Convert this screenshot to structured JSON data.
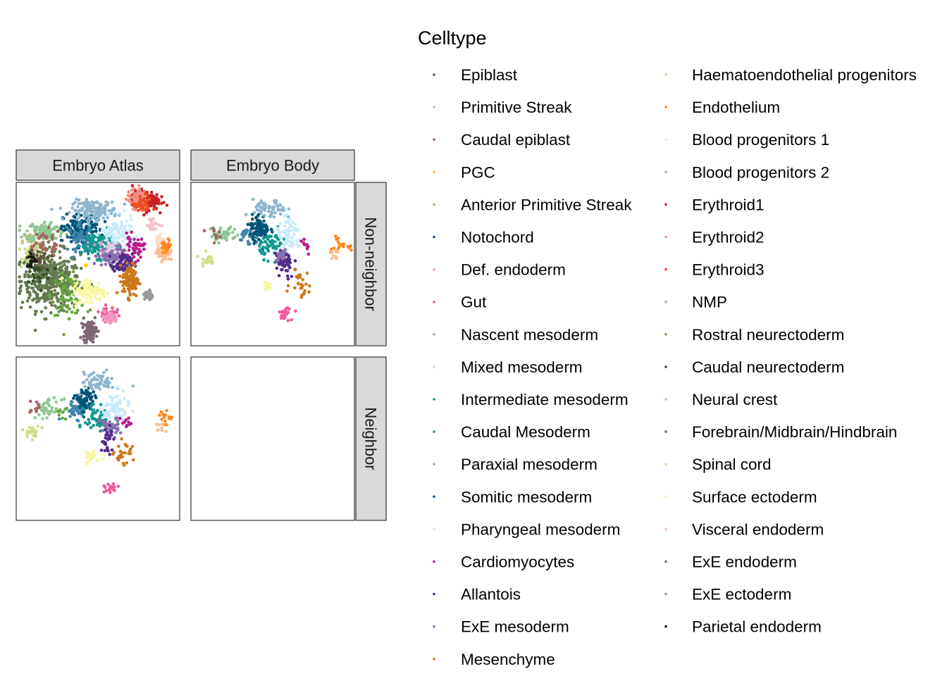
{
  "chart_data": {
    "type": "scatter",
    "facets": {
      "columns": [
        "Embryo Atlas",
        "Embryo Body"
      ],
      "rows": [
        "Non-neighbor",
        "Neighbor"
      ]
    },
    "legend": {
      "title": "Celltype",
      "placement": "right",
      "entries": [
        {
          "name": "Epiblast",
          "color": "#635547"
        },
        {
          "name": "Primitive Streak",
          "color": "#DABE99"
        },
        {
          "name": "Caudal epiblast",
          "color": "#9E6762"
        },
        {
          "name": "PGC",
          "color": "#FACB12"
        },
        {
          "name": "Anterior Primitive Streak",
          "color": "#C19F70"
        },
        {
          "name": "Notochord",
          "color": "#0F4A9C"
        },
        {
          "name": "Def. endoderm",
          "color": "#F397C0"
        },
        {
          "name": "Gut",
          "color": "#EF5A9D"
        },
        {
          "name": "Nascent mesoderm",
          "color": "#C594BF"
        },
        {
          "name": "Mixed mesoderm",
          "color": "#DFCDE4"
        },
        {
          "name": "Intermediate mesoderm",
          "color": "#139992"
        },
        {
          "name": "Caudal Mesoderm",
          "color": "#3F84AA"
        },
        {
          "name": "Paraxial mesoderm",
          "color": "#8DB5CE"
        },
        {
          "name": "Somitic mesoderm",
          "color": "#005579"
        },
        {
          "name": "Pharyngeal mesoderm",
          "color": "#C9EBFB"
        },
        {
          "name": "Cardiomyocytes",
          "color": "#B51D8D"
        },
        {
          "name": "Allantois",
          "color": "#532C8A"
        },
        {
          "name": "ExE mesoderm",
          "color": "#8870AD"
        },
        {
          "name": "Mesenchyme",
          "color": "#CC7818"
        },
        {
          "name": "Haematoendothelial progenitors",
          "color": "#FBBE92"
        },
        {
          "name": "Endothelium",
          "color": "#FF891C"
        },
        {
          "name": "Blood progenitors 1",
          "color": "#F9DECF"
        },
        {
          "name": "Blood progenitors 2",
          "color": "#C9A997"
        },
        {
          "name": "Erythroid1",
          "color": "#C72228"
        },
        {
          "name": "Erythroid2",
          "color": "#F79083"
        },
        {
          "name": "Erythroid3",
          "color": "#EF4E22"
        },
        {
          "name": "NMP",
          "color": "#8EC792"
        },
        {
          "name": "Rostral neurectoderm",
          "color": "#65A83E"
        },
        {
          "name": "Caudal neurectoderm",
          "color": "#354E23"
        },
        {
          "name": "Neural crest",
          "color": "#C3C388"
        },
        {
          "name": "Forebrain/Midbrain/Hindbrain",
          "color": "#647A4F"
        },
        {
          "name": "Spinal cord",
          "color": "#CDE088"
        },
        {
          "name": "Surface ectoderm",
          "color": "#F7F79E"
        },
        {
          "name": "Visceral endoderm",
          "color": "#F6BFCB"
        },
        {
          "name": "ExE endoderm",
          "color": "#7F6874"
        },
        {
          "name": "ExE ectoderm",
          "color": "#989898"
        },
        {
          "name": "Parietal endoderm",
          "color": "#1A1A1A"
        }
      ]
    },
    "axes": {
      "x_visible": false,
      "y_visible": false,
      "grid": false
    },
    "panels": [
      {
        "row": "Non-neighbor",
        "col": "Embryo Atlas",
        "clusters": [
          {
            "celltype": "Forebrain/Midbrain/Hindbrain",
            "cx": 0.21,
            "cy": 0.4,
            "sx": 0.09,
            "sy": 0.09,
            "n": 420
          },
          {
            "celltype": "Spinal cord",
            "cx": 0.1,
            "cy": 0.56,
            "sx": 0.03,
            "sy": 0.03,
            "n": 60
          },
          {
            "celltype": "Rostral neurectoderm",
            "cx": 0.32,
            "cy": 0.31,
            "sx": 0.05,
            "sy": 0.06,
            "n": 80
          },
          {
            "celltype": "Caudal neurectoderm",
            "cx": 0.12,
            "cy": 0.45,
            "sx": 0.05,
            "sy": 0.05,
            "n": 30
          },
          {
            "celltype": "Neural crest",
            "cx": 0.1,
            "cy": 0.64,
            "sx": 0.03,
            "sy": 0.03,
            "n": 25
          },
          {
            "celltype": "NMP",
            "cx": 0.18,
            "cy": 0.7,
            "sx": 0.06,
            "sy": 0.03,
            "n": 110
          },
          {
            "celltype": "Caudal epiblast",
            "cx": 0.16,
            "cy": 0.63,
            "sx": 0.06,
            "sy": 0.04,
            "n": 40
          },
          {
            "celltype": "Epiblast",
            "cx": 0.12,
            "cy": 0.53,
            "sx": 0.03,
            "sy": 0.03,
            "n": 25
          },
          {
            "celltype": "Somitic mesoderm",
            "cx": 0.41,
            "cy": 0.71,
            "sx": 0.06,
            "sy": 0.05,
            "n": 150
          },
          {
            "celltype": "Paraxial mesoderm",
            "cx": 0.48,
            "cy": 0.83,
            "sx": 0.07,
            "sy": 0.03,
            "n": 140
          },
          {
            "celltype": "Caudal Mesoderm",
            "cx": 0.4,
            "cy": 0.66,
            "sx": 0.04,
            "sy": 0.04,
            "n": 60
          },
          {
            "celltype": "Intermediate mesoderm",
            "cx": 0.5,
            "cy": 0.62,
            "sx": 0.05,
            "sy": 0.04,
            "n": 110
          },
          {
            "celltype": "Pharyngeal mesoderm",
            "cx": 0.62,
            "cy": 0.68,
            "sx": 0.05,
            "sy": 0.05,
            "n": 100
          },
          {
            "celltype": "Cardiomyocytes",
            "cx": 0.72,
            "cy": 0.59,
            "sx": 0.03,
            "sy": 0.04,
            "n": 50
          },
          {
            "celltype": "Nascent mesoderm",
            "cx": 0.57,
            "cy": 0.58,
            "sx": 0.03,
            "sy": 0.03,
            "n": 50
          },
          {
            "celltype": "ExE mesoderm",
            "cx": 0.58,
            "cy": 0.55,
            "sx": 0.04,
            "sy": 0.03,
            "n": 80
          },
          {
            "celltype": "Allantois",
            "cx": 0.65,
            "cy": 0.5,
            "sx": 0.03,
            "sy": 0.03,
            "n": 70
          },
          {
            "celltype": "Mesenchyme",
            "cx": 0.7,
            "cy": 0.4,
            "sx": 0.025,
            "sy": 0.05,
            "n": 110
          },
          {
            "celltype": "Mixed mesoderm",
            "cx": 0.58,
            "cy": 0.61,
            "sx": 0.02,
            "sy": 0.02,
            "n": 20
          },
          {
            "celltype": "Surface ectoderm",
            "cx": 0.45,
            "cy": 0.33,
            "sx": 0.05,
            "sy": 0.04,
            "n": 110
          },
          {
            "celltype": "Gut",
            "cx": 0.56,
            "cy": 0.2,
            "sx": 0.025,
            "sy": 0.02,
            "n": 50
          },
          {
            "celltype": "Def. endoderm",
            "cx": 0.57,
            "cy": 0.17,
            "sx": 0.025,
            "sy": 0.02,
            "n": 30
          },
          {
            "celltype": "ExE endoderm",
            "cx": 0.45,
            "cy": 0.09,
            "sx": 0.02,
            "sy": 0.03,
            "n": 110
          },
          {
            "celltype": "ExE ectoderm",
            "cx": 0.81,
            "cy": 0.31,
            "sx": 0.012,
            "sy": 0.015,
            "n": 45
          },
          {
            "celltype": "Erythroid1",
            "cx": 0.79,
            "cy": 0.89,
            "sx": 0.04,
            "sy": 0.03,
            "n": 150
          },
          {
            "celltype": "Erythroid2",
            "cx": 0.74,
            "cy": 0.9,
            "sx": 0.03,
            "sy": 0.03,
            "n": 80
          },
          {
            "celltype": "Erythroid3",
            "cx": 0.77,
            "cy": 0.86,
            "sx": 0.03,
            "sy": 0.03,
            "n": 40
          },
          {
            "celltype": "Haematoendothelial progenitors",
            "cx": 0.9,
            "cy": 0.58,
            "sx": 0.02,
            "sy": 0.03,
            "n": 70
          },
          {
            "celltype": "Endothelium",
            "cx": 0.92,
            "cy": 0.61,
            "sx": 0.015,
            "sy": 0.02,
            "n": 30
          },
          {
            "celltype": "Blood progenitors 1",
            "cx": 0.88,
            "cy": 0.66,
            "sx": 0.015,
            "sy": 0.015,
            "n": 15
          },
          {
            "celltype": "Visceral endoderm",
            "cx": 0.84,
            "cy": 0.74,
            "sx": 0.02,
            "sy": 0.02,
            "n": 20
          },
          {
            "celltype": "Parietal endoderm",
            "cx": 0.1,
            "cy": 0.52,
            "sx": 0.02,
            "sy": 0.02,
            "n": 15
          },
          {
            "celltype": "PGC",
            "cx": 0.42,
            "cy": 0.5,
            "sx": 0.01,
            "sy": 0.01,
            "n": 4
          }
        ]
      },
      {
        "row": "Non-neighbor",
        "col": "Embryo Body",
        "clusters": [
          {
            "celltype": "NMP",
            "cx": 0.2,
            "cy": 0.68,
            "sx": 0.04,
            "sy": 0.025,
            "n": 45
          },
          {
            "celltype": "Caudal epiblast",
            "cx": 0.13,
            "cy": 0.69,
            "sx": 0.02,
            "sy": 0.02,
            "n": 10
          },
          {
            "celltype": "Spinal cord",
            "cx": 0.1,
            "cy": 0.53,
            "sx": 0.02,
            "sy": 0.02,
            "n": 20
          },
          {
            "celltype": "Caudal Mesoderm",
            "cx": 0.36,
            "cy": 0.68,
            "sx": 0.04,
            "sy": 0.03,
            "n": 40
          },
          {
            "celltype": "Somitic mesoderm",
            "cx": 0.42,
            "cy": 0.72,
            "sx": 0.03,
            "sy": 0.04,
            "n": 80
          },
          {
            "celltype": "Paraxial mesoderm",
            "cx": 0.48,
            "cy": 0.83,
            "sx": 0.05,
            "sy": 0.03,
            "n": 60
          },
          {
            "celltype": "Intermediate mesoderm",
            "cx": 0.5,
            "cy": 0.62,
            "sx": 0.04,
            "sy": 0.04,
            "n": 60
          },
          {
            "celltype": "Pharyngeal mesoderm",
            "cx": 0.6,
            "cy": 0.67,
            "sx": 0.04,
            "sy": 0.05,
            "n": 70
          },
          {
            "celltype": "Cardiomyocytes",
            "cx": 0.7,
            "cy": 0.6,
            "sx": 0.02,
            "sy": 0.02,
            "n": 10
          },
          {
            "celltype": "Allantois",
            "cx": 0.57,
            "cy": 0.5,
            "sx": 0.03,
            "sy": 0.05,
            "n": 50
          },
          {
            "celltype": "ExE mesoderm",
            "cx": 0.55,
            "cy": 0.55,
            "sx": 0.02,
            "sy": 0.02,
            "n": 20
          },
          {
            "celltype": "Mesenchyme",
            "cx": 0.67,
            "cy": 0.38,
            "sx": 0.03,
            "sy": 0.04,
            "n": 25
          },
          {
            "celltype": "Surface ectoderm",
            "cx": 0.46,
            "cy": 0.38,
            "sx": 0.02,
            "sy": 0.02,
            "n": 15
          },
          {
            "celltype": "Gut",
            "cx": 0.58,
            "cy": 0.2,
            "sx": 0.02,
            "sy": 0.02,
            "n": 25
          },
          {
            "celltype": "Endothelium",
            "cx": 0.9,
            "cy": 0.62,
            "sx": 0.03,
            "sy": 0.02,
            "n": 20
          },
          {
            "celltype": "Haematoendothelial progenitors",
            "cx": 0.88,
            "cy": 0.55,
            "sx": 0.015,
            "sy": 0.015,
            "n": 8
          }
        ]
      },
      {
        "row": "Neighbor",
        "col": "Embryo Atlas",
        "clusters": [
          {
            "celltype": "NMP",
            "cx": 0.2,
            "cy": 0.68,
            "sx": 0.04,
            "sy": 0.03,
            "n": 45
          },
          {
            "celltype": "Caudal epiblast",
            "cx": 0.12,
            "cy": 0.69,
            "sx": 0.02,
            "sy": 0.02,
            "n": 10
          },
          {
            "celltype": "Spinal cord",
            "cx": 0.1,
            "cy": 0.54,
            "sx": 0.025,
            "sy": 0.02,
            "n": 25
          },
          {
            "celltype": "Caudal Mesoderm",
            "cx": 0.36,
            "cy": 0.68,
            "sx": 0.04,
            "sy": 0.03,
            "n": 40
          },
          {
            "celltype": "Somitic mesoderm",
            "cx": 0.42,
            "cy": 0.73,
            "sx": 0.03,
            "sy": 0.04,
            "n": 80
          },
          {
            "celltype": "Paraxial mesoderm",
            "cx": 0.5,
            "cy": 0.85,
            "sx": 0.05,
            "sy": 0.03,
            "n": 60
          },
          {
            "celltype": "Intermediate mesoderm",
            "cx": 0.5,
            "cy": 0.62,
            "sx": 0.04,
            "sy": 0.04,
            "n": 60
          },
          {
            "celltype": "Pharyngeal mesoderm",
            "cx": 0.61,
            "cy": 0.68,
            "sx": 0.04,
            "sy": 0.05,
            "n": 70
          },
          {
            "celltype": "Cardiomyocytes",
            "cx": 0.68,
            "cy": 0.6,
            "sx": 0.02,
            "sy": 0.02,
            "n": 10
          },
          {
            "celltype": "ExE mesoderm",
            "cx": 0.57,
            "cy": 0.57,
            "sx": 0.03,
            "sy": 0.03,
            "n": 40
          },
          {
            "celltype": "Allantois",
            "cx": 0.56,
            "cy": 0.5,
            "sx": 0.02,
            "sy": 0.04,
            "n": 30
          },
          {
            "celltype": "Mesenchyme",
            "cx": 0.66,
            "cy": 0.4,
            "sx": 0.03,
            "sy": 0.04,
            "n": 25
          },
          {
            "celltype": "Surface ectoderm",
            "cx": 0.46,
            "cy": 0.39,
            "sx": 0.03,
            "sy": 0.02,
            "n": 20
          },
          {
            "celltype": "Gut",
            "cx": 0.58,
            "cy": 0.19,
            "sx": 0.02,
            "sy": 0.015,
            "n": 20
          },
          {
            "celltype": "Endothelium",
            "cx": 0.91,
            "cy": 0.63,
            "sx": 0.02,
            "sy": 0.02,
            "n": 15
          },
          {
            "celltype": "Haematoendothelial progenitors",
            "cx": 0.89,
            "cy": 0.57,
            "sx": 0.02,
            "sy": 0.02,
            "n": 8
          },
          {
            "celltype": "Rostral neurectoderm",
            "cx": 0.28,
            "cy": 0.66,
            "sx": 0.02,
            "sy": 0.02,
            "n": 8
          }
        ]
      },
      {
        "row": "Neighbor",
        "col": "Embryo Body",
        "clusters": []
      }
    ]
  }
}
